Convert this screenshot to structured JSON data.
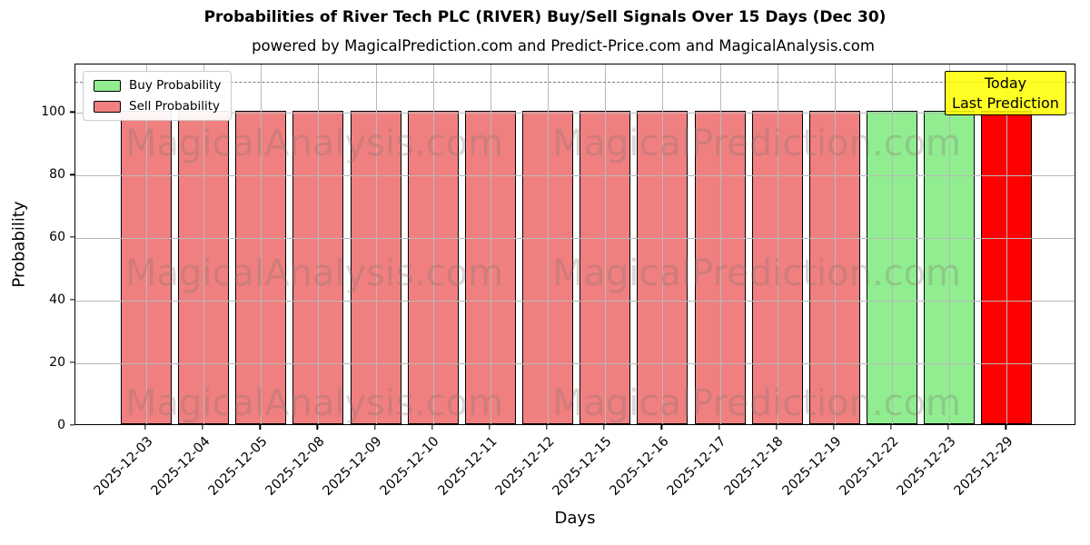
{
  "chart_data": {
    "type": "bar",
    "title": "Probabilities of River Tech PLC (RIVER) Buy/Sell Signals Over 15 Days (Dec 30)",
    "subtitle": "powered by MagicalPrediction.com and Predict-Price.com and MagicalAnalysis.com",
    "xlabel": "Days",
    "ylabel": "Probability",
    "ylim": [
      0,
      115
    ],
    "yticks": [
      0,
      20,
      40,
      60,
      80,
      100
    ],
    "grid": true,
    "grid_color": "#b9b9b9",
    "bar_edge_color": "#000000",
    "dashed_line": {
      "y": 110,
      "color": "#7f7f7f",
      "style": "dashed"
    },
    "legend": {
      "position": "upper-left",
      "entries": [
        {
          "label": "Buy Probability",
          "color": "#90ee90"
        },
        {
          "label": "Sell Probability",
          "color": "#f08080"
        }
      ]
    },
    "annotation_box": {
      "line1": "Today",
      "line2": "Last Prediction",
      "bg_color": "rgba(255,255,0,0.85)",
      "border_color": "#000000"
    },
    "watermarks": {
      "left_text": "MagicalAnalysis.com",
      "right_text": "MagicalPrediction.com",
      "color": "rgba(128,112,112,0.28)"
    },
    "categories": [
      "2025-12-03",
      "2025-12-04",
      "2025-12-05",
      "2025-12-08",
      "2025-12-09",
      "2025-12-10",
      "2025-12-11",
      "2025-12-12",
      "2025-12-15",
      "2025-12-16",
      "2025-12-17",
      "2025-12-18",
      "2025-12-19",
      "2025-12-22",
      "2025-12-23",
      "2025-12-29"
    ],
    "bars": [
      {
        "category": "2025-12-03",
        "value": 100,
        "signal": "sell",
        "color": "#f08080"
      },
      {
        "category": "2025-12-04",
        "value": 100,
        "signal": "sell",
        "color": "#f08080"
      },
      {
        "category": "2025-12-05",
        "value": 100,
        "signal": "sell",
        "color": "#f08080"
      },
      {
        "category": "2025-12-08",
        "value": 100,
        "signal": "sell",
        "color": "#f08080"
      },
      {
        "category": "2025-12-09",
        "value": 100,
        "signal": "sell",
        "color": "#f08080"
      },
      {
        "category": "2025-12-10",
        "value": 100,
        "signal": "sell",
        "color": "#f08080"
      },
      {
        "category": "2025-12-11",
        "value": 100,
        "signal": "sell",
        "color": "#f08080"
      },
      {
        "category": "2025-12-12",
        "value": 100,
        "signal": "sell",
        "color": "#f08080"
      },
      {
        "category": "2025-12-15",
        "value": 100,
        "signal": "sell",
        "color": "#f08080"
      },
      {
        "category": "2025-12-16",
        "value": 100,
        "signal": "sell",
        "color": "#f08080"
      },
      {
        "category": "2025-12-17",
        "value": 100,
        "signal": "sell",
        "color": "#f08080"
      },
      {
        "category": "2025-12-18",
        "value": 100,
        "signal": "sell",
        "color": "#f08080"
      },
      {
        "category": "2025-12-19",
        "value": 100,
        "signal": "sell",
        "color": "#f08080"
      },
      {
        "category": "2025-12-22",
        "value": 100,
        "signal": "buy",
        "color": "#90ee90"
      },
      {
        "category": "2025-12-23",
        "value": 100,
        "signal": "buy",
        "color": "#90ee90"
      },
      {
        "category": "2025-12-29",
        "value": 100,
        "signal": "last-prediction",
        "color": "#ff0000"
      }
    ]
  }
}
